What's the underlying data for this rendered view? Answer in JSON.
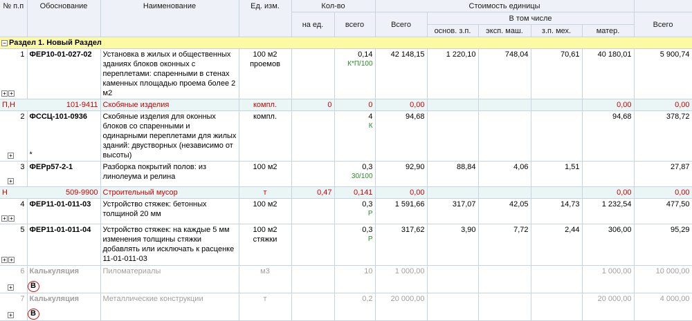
{
  "header": {
    "col_num": "№ п.п",
    "col_basis": "Обоснование",
    "col_name": "Наименование",
    "col_unit": "Ед. изм.",
    "col_qty": "Кол-во",
    "col_qty_per": "на ед.",
    "col_qty_total": "всего",
    "col_cost": "Стоимость единицы",
    "col_cost_total": "Всего",
    "col_incl": "В том числе",
    "col_wage": "основ. з.п.",
    "col_mach": "эксп. маш.",
    "col_mech": "з.п. мех.",
    "col_mat": "матер.",
    "col_grand_total": "Всего"
  },
  "section": {
    "expander": "−",
    "title": "Раздел 1. Новый Раздел"
  },
  "rows": [
    {
      "num": "1",
      "basis": "ФЕР10-01-027-02",
      "name": "Установка в жилых и общественных зданиях блоков оконных с переплетами: спаренными в стенах каменных площадью проема более 2 м2",
      "unit": "100 м2 проемов",
      "qty_per": "",
      "qty_total": "0,14",
      "qty_note": "К*П/100",
      "cost_total": "42 148,15",
      "wage": "1 220,10",
      "mach": "748,04",
      "mech": "70,61",
      "mat": "40 180,01",
      "grand": "5 900,74"
    },
    {
      "type_code": "П,Н",
      "code": "101-9411",
      "name": "Скобяные изделия",
      "unit": "компл.",
      "qty_per": "0",
      "qty_total": "0",
      "cost_total": "0,00",
      "mat": "0,00",
      "grand": "0,00"
    },
    {
      "num": "2",
      "basis": "ФССЦ-101-0936",
      "name": "Скобяные изделия для оконных блоков со спаренными и одинарными переплетами для жилых зданий: двустворных (независимо от высоты)",
      "unit": "компл.",
      "qty_total": "4",
      "qty_note": "К",
      "star": "*",
      "cost_total": "94,68",
      "mat": "94,68",
      "grand": "378,72"
    },
    {
      "num": "3",
      "basis": "ФЕРр57-2-1",
      "name": "Разборка покрытий полов: из линолеума и релина",
      "unit": "100 м2",
      "qty_total": "0,3",
      "qty_note": "30/100",
      "cost_total": "92,90",
      "wage": "88,84",
      "mach": "4,06",
      "mech": "1,51",
      "grand": "27,87"
    },
    {
      "type_code": "Н",
      "code": "509-9900",
      "name": "Строительный мусор",
      "unit": "т",
      "qty_per": "0,47",
      "qty_total": "0,141",
      "cost_total": "0,00",
      "mat": "0,00",
      "grand": "0,00"
    },
    {
      "num": "4",
      "basis": "ФЕР11-01-011-03",
      "name": "Устройство стяжек: бетонных толщиной 20 мм",
      "unit": "100 м2",
      "qty_total": "0,3",
      "qty_note": "Р",
      "cost_total": "1 591,66",
      "wage": "317,07",
      "mach": "42,05",
      "mech": "14,73",
      "mat": "1 232,54",
      "grand": "477,50"
    },
    {
      "num": "5",
      "basis": "ФЕР11-01-011-04",
      "name": "Устройство стяжек: на каждые 5 мм изменения толщины стяжки добавлять или исключать к расценке 11-01-011-03",
      "unit": "100 м2 стяжки",
      "qty_total": "0,3",
      "qty_note": "Р",
      "cost_total": "317,62",
      "wage": "3,90",
      "mach": "7,72",
      "mech": "2,44",
      "mat": "306,00",
      "grand": "95,29"
    },
    {
      "num": "6",
      "basis": "Калькуляция",
      "name": "Пиломатериалы",
      "unit": "м3",
      "qty_total": "10",
      "cost_total": "1 000,00",
      "mat": "1 000,00",
      "grand": "10 000,00",
      "mark": "В"
    },
    {
      "num": "7",
      "basis": "Калькуляция",
      "name": "Металлические конструкции",
      "unit": "т",
      "qty_total": "0,2",
      "cost_total": "20 000,00",
      "mat": "20 000,00",
      "grand": "4 000,00",
      "mark": "В"
    }
  ],
  "icons": {
    "expand": "+",
    "collapse": "−"
  },
  "colors": {
    "header_bg": "#eef2f8",
    "section_bg": "#fdfaa6",
    "resource_bg": "#eaf6f5",
    "resource_text": "#d00000",
    "note_green": "#2a8a2a",
    "dim_text": "#a0a0a0",
    "mark_circle": "#e00000"
  }
}
